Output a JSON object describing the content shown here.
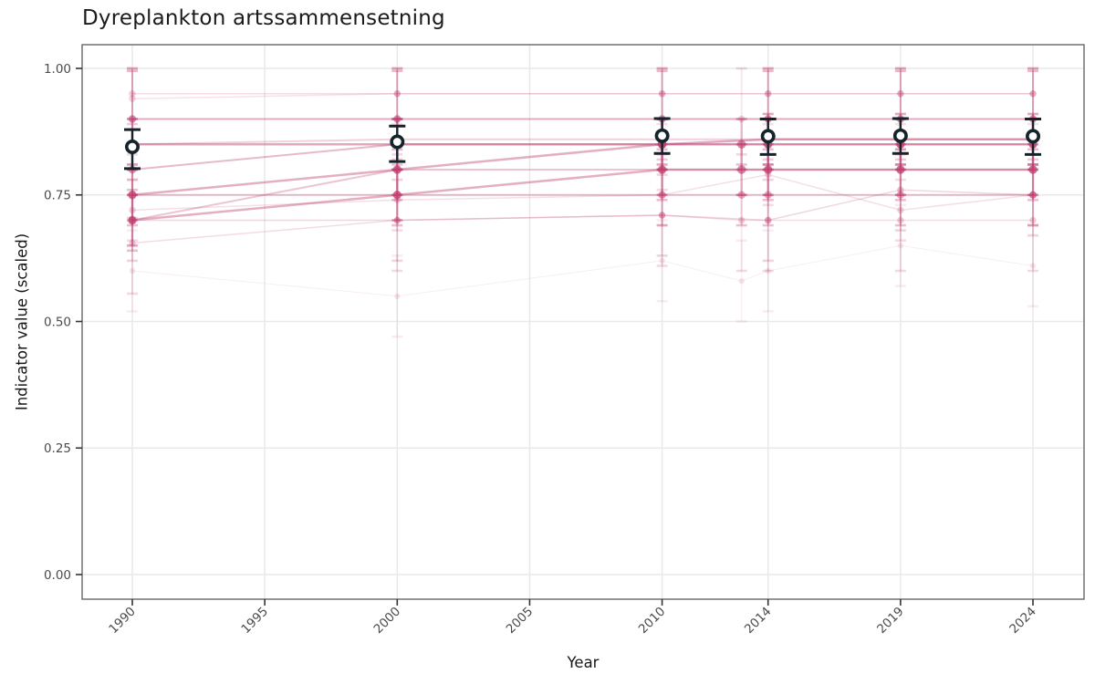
{
  "title": "Dyreplankton artssammensetning",
  "colors": {
    "background": "#ffffff",
    "panel_border": "#676767",
    "gridline": "#e9e9e9",
    "tick_mark": "#333333",
    "tick_label": "#4b4b4b",
    "title_text": "#1b1b1b",
    "indicator_pink": "#bf3d6f",
    "mean_black": "#15232b",
    "mean_fill": "#ffffff"
  },
  "chart_data": {
    "type": "line",
    "title": "Dyreplankton artssammensetning",
    "xlabel": "Year",
    "ylabel": "Indicator value (scaled)",
    "legend": "none",
    "grid": "major-only",
    "xlim": [
      1988.1,
      2025.9
    ],
    "ylim": [
      -0.049,
      1.048
    ],
    "x_tick_values": [
      1990,
      1995,
      2000,
      2005,
      2010,
      2014,
      2019,
      2024
    ],
    "x_tick_labels": [
      "1990",
      "1995",
      "2000",
      "2005",
      "2010",
      "2014",
      "2019",
      "2024"
    ],
    "y_tick_values": [
      0.0,
      0.25,
      0.5,
      0.75,
      1.0
    ],
    "y_tick_labels": [
      "0.00",
      "0.25",
      "0.50",
      "0.75",
      "1.00"
    ],
    "mean_series": {
      "name": "scaled-mean-with-ci",
      "marker": "open-circle",
      "connected": false,
      "years": [
        1990,
        2000,
        2010,
        2014,
        2019,
        2024
      ],
      "values": [
        0.845,
        0.855,
        0.867,
        0.866,
        0.867,
        0.866
      ],
      "ci_low": [
        0.802,
        0.816,
        0.832,
        0.83,
        0.832,
        0.83
      ],
      "ci_high": [
        0.879,
        0.886,
        0.901,
        0.9,
        0.901,
        0.9
      ]
    },
    "indicator_series": [
      {
        "name": "draw-01",
        "width": 1.5,
        "opacity": 0.12,
        "years": [
          1990,
          2000,
          2010,
          2014,
          2019,
          2024
        ],
        "values": [
          0.95,
          0.95,
          0.95,
          0.95,
          0.95,
          0.95
        ],
        "lo": [
          0.9,
          0.9,
          0.9,
          0.9,
          0.9,
          0.9
        ],
        "hi": [
          1.0,
          1.0,
          1.0,
          1.0,
          1.0,
          1.0
        ]
      },
      {
        "name": "draw-02",
        "width": 1.5,
        "opacity": 0.1,
        "years": [
          1990,
          2000,
          2010,
          2014,
          2019,
          2024
        ],
        "values": [
          0.94,
          0.95,
          0.95,
          0.95,
          0.95,
          0.95
        ],
        "lo": [
          0.88,
          0.89,
          0.89,
          0.89,
          0.89,
          0.89
        ],
        "hi": [
          1.0,
          1.0,
          1.0,
          1.0,
          1.0,
          1.0
        ]
      },
      {
        "name": "draw-03",
        "width": 2.0,
        "opacity": 0.22,
        "years": [
          1990,
          2000,
          2010,
          2014,
          2019,
          2024
        ],
        "values": [
          0.9,
          0.9,
          0.9,
          0.9,
          0.9,
          0.9
        ],
        "lo": [
          0.84,
          0.84,
          0.84,
          0.84,
          0.84,
          0.84
        ],
        "hi": [
          0.995,
          0.995,
          0.995,
          0.995,
          0.995,
          0.995
        ]
      },
      {
        "name": "draw-04",
        "width": 1.5,
        "opacity": 0.12,
        "years": [
          1990,
          2000,
          2010,
          2013,
          2014,
          2019,
          2024
        ],
        "values": [
          0.9,
          0.9,
          0.9,
          0.9,
          0.9,
          0.9,
          0.9
        ],
        "lo": [
          0.83,
          0.83,
          0.83,
          0.83,
          0.83,
          0.83,
          0.83
        ],
        "hi": [
          1.0,
          1.0,
          1.0,
          1.0,
          1.0,
          1.0,
          1.0
        ]
      },
      {
        "name": "draw-05",
        "width": 2.5,
        "opacity": 0.3,
        "years": [
          1990,
          2000,
          2010,
          2014,
          2019,
          2024
        ],
        "values": [
          0.85,
          0.85,
          0.85,
          0.86,
          0.86,
          0.86
        ],
        "lo": [
          0.8,
          0.8,
          0.8,
          0.81,
          0.81,
          0.81
        ],
        "hi": [
          0.9,
          0.9,
          0.9,
          0.91,
          0.91,
          0.91
        ]
      },
      {
        "name": "draw-06",
        "width": 2.0,
        "opacity": 0.16,
        "years": [
          1990,
          2000,
          2010,
          2014,
          2019,
          2024
        ],
        "values": [
          0.85,
          0.86,
          0.86,
          0.86,
          0.86,
          0.86
        ],
        "lo": [
          0.81,
          0.82,
          0.82,
          0.82,
          0.82,
          0.82
        ],
        "hi": [
          0.89,
          0.9,
          0.9,
          0.9,
          0.9,
          0.9
        ]
      },
      {
        "name": "draw-07",
        "width": 2.0,
        "opacity": 0.24,
        "years": [
          1990,
          2000,
          2010,
          2014,
          2019,
          2024
        ],
        "values": [
          0.8,
          0.85,
          0.85,
          0.85,
          0.85,
          0.85
        ],
        "lo": [
          0.75,
          0.8,
          0.8,
          0.8,
          0.8,
          0.8
        ],
        "hi": [
          0.85,
          0.9,
          0.9,
          0.9,
          0.9,
          0.9
        ]
      },
      {
        "name": "draw-08",
        "width": 2.5,
        "opacity": 0.28,
        "years": [
          1990,
          2000,
          2010,
          2013,
          2014,
          2019,
          2024
        ],
        "values": [
          0.75,
          0.8,
          0.85,
          0.85,
          0.85,
          0.85,
          0.85
        ],
        "lo": [
          0.7,
          0.75,
          0.8,
          0.8,
          0.8,
          0.8,
          0.8
        ],
        "hi": [
          0.8,
          0.85,
          0.9,
          0.9,
          0.9,
          0.9,
          0.9
        ]
      },
      {
        "name": "draw-09",
        "width": 2.5,
        "opacity": 0.28,
        "years": [
          1990,
          2000,
          2010,
          2013,
          2014,
          2019,
          2024
        ],
        "values": [
          0.7,
          0.75,
          0.8,
          0.8,
          0.8,
          0.8,
          0.8
        ],
        "lo": [
          0.65,
          0.7,
          0.75,
          0.75,
          0.75,
          0.75,
          0.75
        ],
        "hi": [
          0.75,
          0.8,
          0.85,
          0.85,
          0.85,
          0.85,
          0.85
        ]
      },
      {
        "name": "draw-10",
        "width": 2.0,
        "opacity": 0.2,
        "years": [
          1990,
          2000,
          2010,
          2014,
          2019,
          2024
        ],
        "values": [
          0.7,
          0.8,
          0.8,
          0.8,
          0.8,
          0.8
        ],
        "lo": [
          0.64,
          0.74,
          0.74,
          0.74,
          0.74,
          0.74
        ],
        "hi": [
          0.76,
          0.86,
          0.86,
          0.86,
          0.86,
          0.86
        ]
      },
      {
        "name": "draw-11",
        "width": 2.0,
        "opacity": 0.2,
        "years": [
          1990,
          2000,
          2010,
          2013,
          2014,
          2019,
          2024
        ],
        "values": [
          0.75,
          0.75,
          0.75,
          0.75,
          0.75,
          0.75,
          0.75
        ],
        "lo": [
          0.69,
          0.69,
          0.69,
          0.69,
          0.69,
          0.69,
          0.69
        ],
        "hi": [
          0.81,
          0.81,
          0.81,
          0.81,
          0.81,
          0.81,
          0.81
        ]
      },
      {
        "name": "draw-12",
        "width": 1.5,
        "opacity": 0.14,
        "years": [
          1990,
          2000,
          2010,
          2014,
          2019,
          2024
        ],
        "values": [
          0.7,
          0.7,
          0.71,
          0.7,
          0.76,
          0.75
        ],
        "lo": [
          0.62,
          0.62,
          0.63,
          0.62,
          0.68,
          0.67
        ],
        "hi": [
          0.78,
          0.78,
          0.79,
          0.78,
          0.84,
          0.83
        ]
      },
      {
        "name": "draw-13",
        "width": 1.5,
        "opacity": 0.11,
        "years": [
          1990,
          2000,
          2010,
          2014,
          2019,
          2024
        ],
        "values": [
          0.72,
          0.74,
          0.75,
          0.79,
          0.72,
          0.75
        ],
        "lo": [
          0.66,
          0.68,
          0.69,
          0.73,
          0.66,
          0.69
        ],
        "hi": [
          0.78,
          0.8,
          0.81,
          0.85,
          0.78,
          0.81
        ]
      },
      {
        "name": "draw-14",
        "width": 1.5,
        "opacity": 0.12,
        "years": [
          1990,
          2000,
          2010,
          2013,
          2014,
          2019,
          2024
        ],
        "values": [
          0.655,
          0.7,
          0.71,
          0.7,
          0.7,
          0.7,
          0.7
        ],
        "lo": [
          0.555,
          0.6,
          0.61,
          0.6,
          0.6,
          0.6,
          0.6
        ],
        "hi": [
          0.705,
          0.75,
          0.76,
          0.75,
          0.75,
          0.75,
          0.75
        ]
      },
      {
        "name": "draw-15",
        "width": 1.0,
        "opacity": 0.06,
        "years": [
          1990,
          2000,
          2010,
          2013,
          2014,
          2019,
          2024
        ],
        "values": [
          0.6,
          0.55,
          0.62,
          0.58,
          0.6,
          0.65,
          0.61
        ],
        "lo": [
          0.52,
          0.47,
          0.54,
          0.5,
          0.52,
          0.57,
          0.53
        ],
        "hi": [
          0.68,
          0.63,
          0.7,
          0.66,
          0.68,
          0.73,
          0.69
        ]
      }
    ]
  }
}
